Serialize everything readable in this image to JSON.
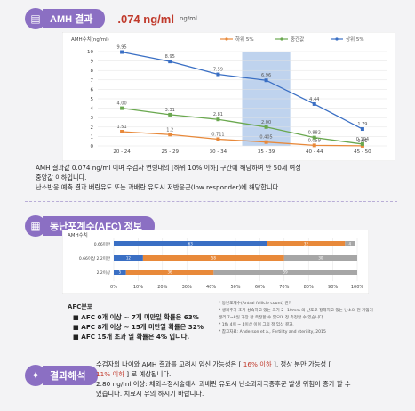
{
  "amh_section": {
    "title": "AMH 결과",
    "value": ".074 ng/ml",
    "unit": "ng/ml"
  },
  "chart_data": {
    "type": "line",
    "ylabel": "AMH수치(ng/ml)",
    "ylim": [
      0,
      10
    ],
    "yticks": [
      "0",
      "1",
      "2",
      "3",
      "4",
      "5",
      "6",
      "7",
      "8",
      "9",
      "10"
    ],
    "categories": [
      "20 - 24",
      "25 - 29",
      "30 - 34",
      "35 - 39",
      "40 - 44",
      "45 - 50"
    ],
    "highlight_category": "35 - 39",
    "series": [
      {
        "name": "하위 5%",
        "color": "#e8893a",
        "values": [
          1.51,
          1.2,
          0.711,
          0.405,
          0.059,
          0.01
        ],
        "labels": [
          "1.51",
          "1.2",
          "0.711",
          "0.405",
          "0.059",
          "0.01"
        ]
      },
      {
        "name": "중간값",
        "color": "#6aa84f",
        "values": [
          4.0,
          3.31,
          2.81,
          2.0,
          0.882,
          0.194
        ],
        "labels": [
          "4.00",
          "3.31",
          "2.81",
          "2.00",
          "0.882",
          "0.194"
        ]
      },
      {
        "name": "상위 5%",
        "color": "#3a6fc4",
        "values": [
          9.95,
          8.95,
          7.59,
          6.96,
          4.44,
          1.79
        ],
        "labels": [
          "9.95",
          "8.95",
          "7.59",
          "6.96",
          "4.44",
          "1.79"
        ]
      }
    ]
  },
  "amh_text": {
    "line1": "AMH 결과값 0.074 ng/ml 이며 수검자 연령대의 [하위 10% 이하] 구간에 해당하며 만 50세 여성",
    "line2": "중앙값 이하입니다.",
    "line3": "난소반응 예측 결과 배란유도 또는 과배란 유도시 저반응군(low responder)에 해당합니다."
  },
  "afc_section": {
    "title": "동난포계수(AFC) 정보",
    "bar_title": "AMH수치",
    "rows": [
      {
        "label": "0.66미만",
        "segments": [
          {
            "value": 63,
            "color": "#3a6fc4"
          },
          {
            "value": 32,
            "color": "#e8893a"
          },
          {
            "value": 4,
            "color": "#a6a6a6"
          }
        ]
      },
      {
        "label": "0.66이상 2.2미만",
        "segments": [
          {
            "value": 12,
            "color": "#3a6fc4"
          },
          {
            "value": 58,
            "color": "#e8893a"
          },
          {
            "value": 30,
            "color": "#a6a6a6"
          }
        ]
      },
      {
        "label": "2.2이상",
        "segments": [
          {
            "value": 5,
            "color": "#3a6fc4"
          },
          {
            "value": 36,
            "color": "#e8893a"
          },
          {
            "value": 59,
            "color": "#a6a6a6"
          }
        ]
      }
    ],
    "xticks": [
      "0%",
      "10%",
      "20%",
      "30%",
      "40%",
      "50%",
      "60%",
      "70%",
      "80%",
      "90%",
      "100%"
    ],
    "distribution_title": "AFC분포",
    "bullets": [
      "AFC 0개 이상 ~ 7개 미만일 확률은 63%",
      "AFC 8개 이상 ~ 15개 미만일 확률은 32%",
      "AFC 15개 초과 일 확률은 4% 입니다."
    ],
    "notes": [
      "* 동난포계수(Antral follicle count) 란?",
      "* 생리주기 초기 성숙하고 있는 크기 2~10mm 의 난포로 정해지고 있는 난소의 전 가임기",
      "생리 7~8일 가장 잘 측정할 수 있으며 정 측정할 수 있습니다.",
      "* 1fh 4이 ~ 4이상 이며 그의 정 임상 결과.",
      "* 참고자료: Anderson et a., Fertility and sterility, 2015"
    ]
  },
  "interpretation": {
    "title": "결과해석",
    "line1a": "수검자의 나이와 AMH 결과를 고려시 임신 가능성은 [",
    "line1b": "16% 이하",
    "line1c": "], 정상 분만 가능성 [",
    "line2a": "11% 이하",
    "line2b": "] 로 예상됩니다.",
    "line3": "2.80 ng/ml 이상: 체외수정시술에서 과배란 유도시 난소과자극증후군 발생 위험이 증가 할 수",
    "line4": "있습니다. 치료시 유의 하시기 바랍니다."
  }
}
